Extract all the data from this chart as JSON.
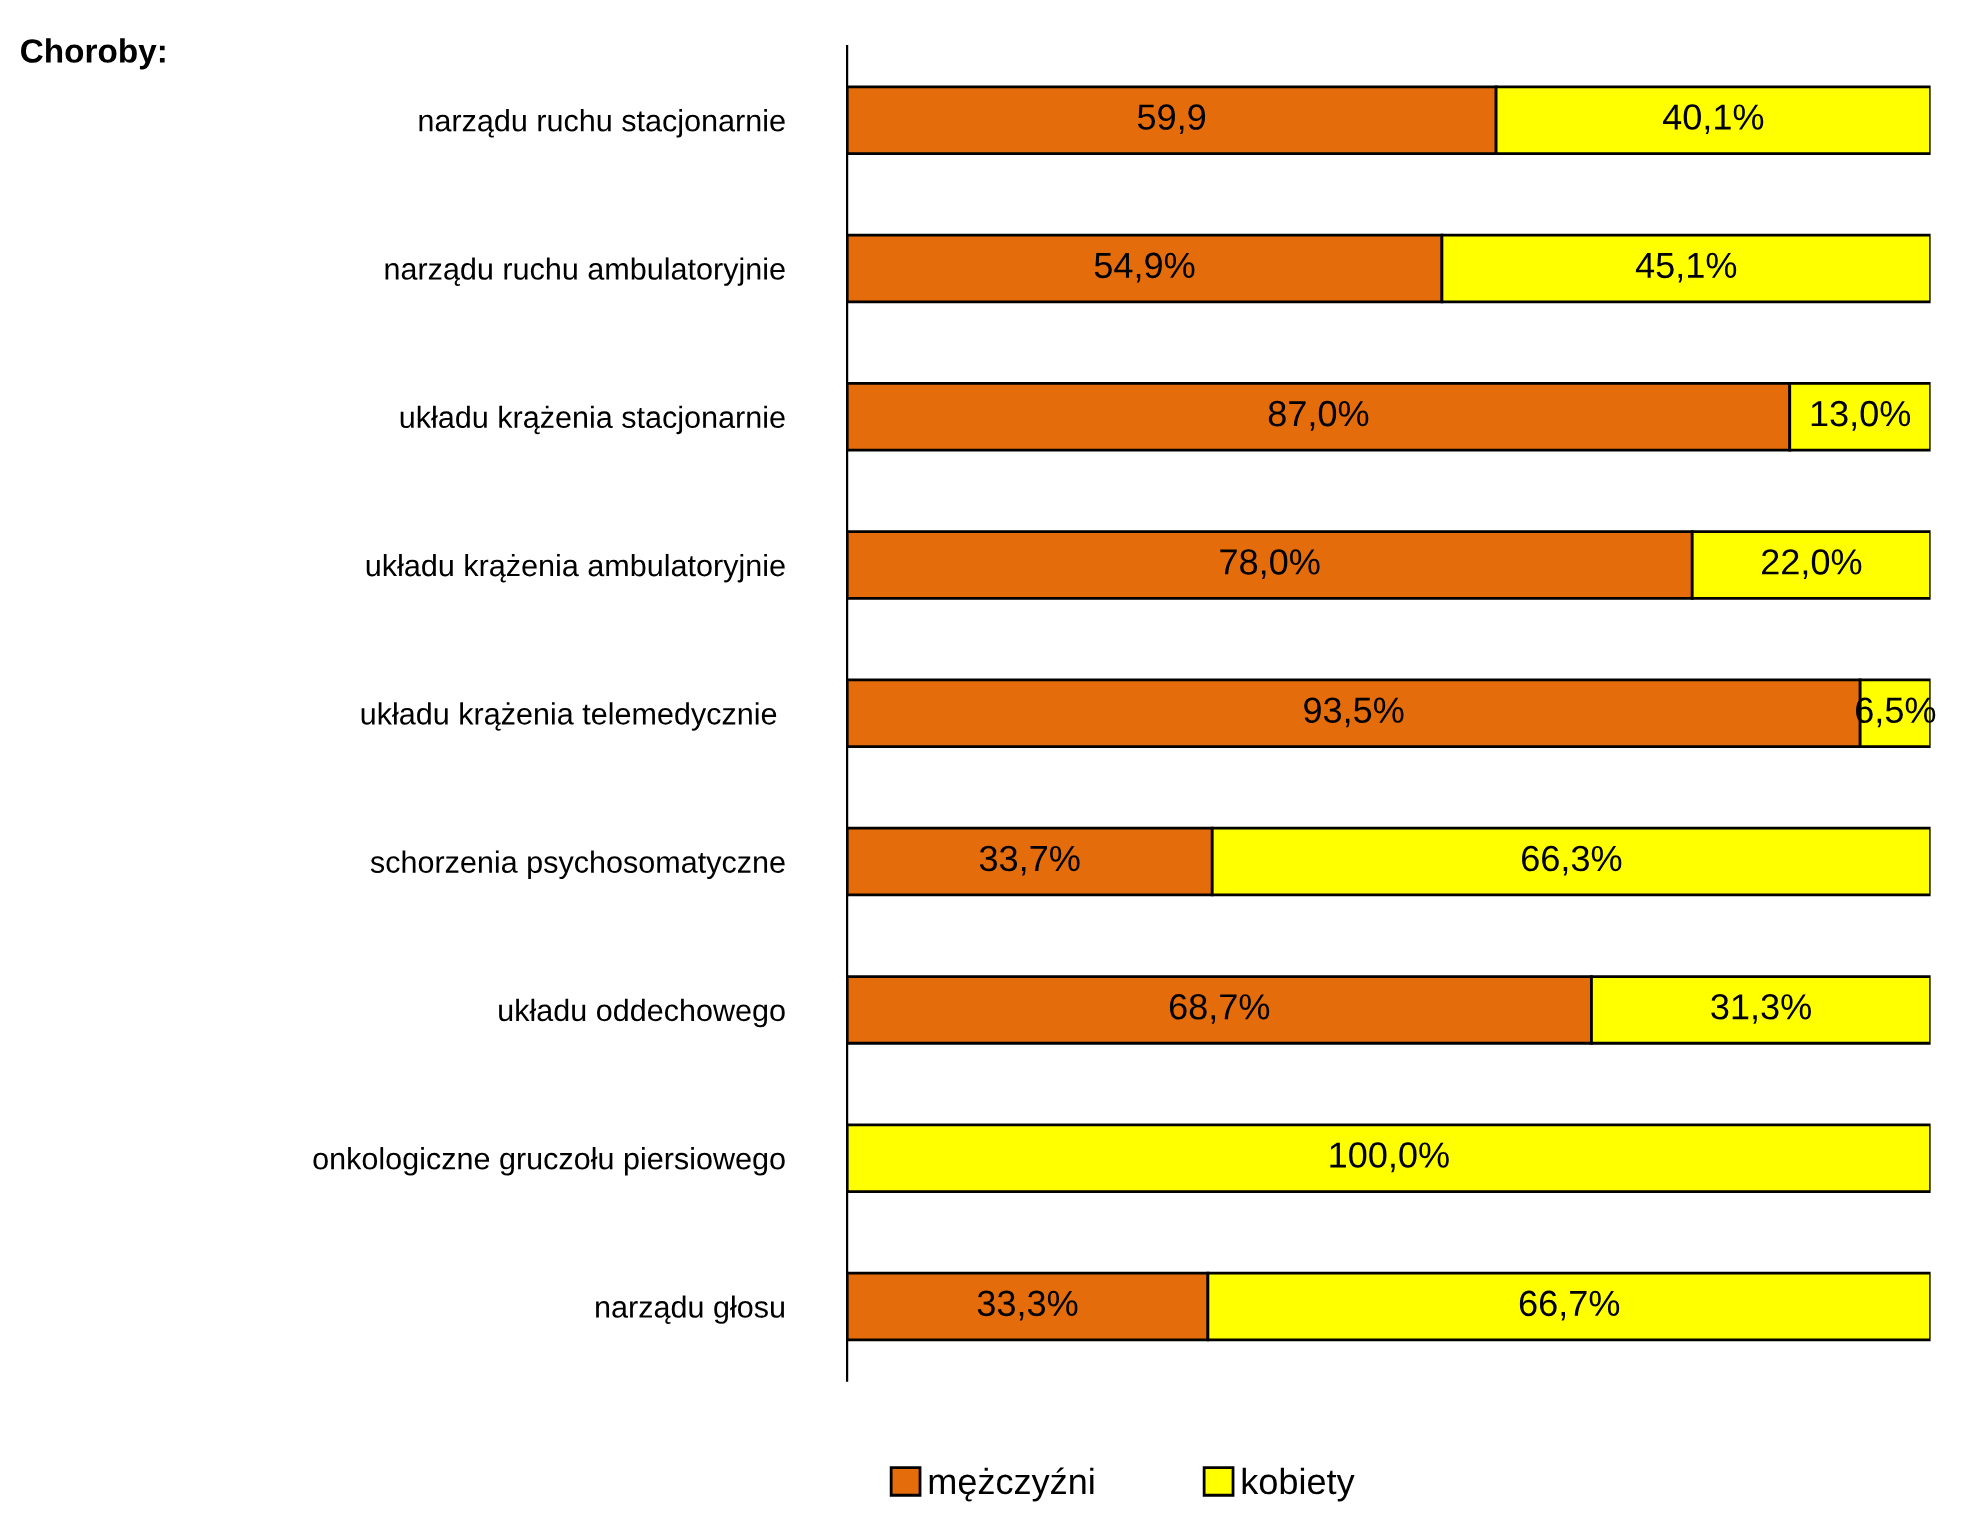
{
  "chart_data": {
    "type": "bar",
    "orientation": "horizontal",
    "stacked": true,
    "title": "Choroby:",
    "tick_labels": "y",
    "legend": "bottom",
    "grid": false,
    "categories": [
      "narządu ruchu stacjonarnie",
      "narządu ruchu ambulatoryjnie",
      "układu krążenia stacjonarnie",
      "układu krążenia ambulatoryjnie",
      "układu krążenia telemedycznie ",
      "schorzenia psychosomatyczne",
      "układu oddechowego",
      "onkologiczne gruczołu piersiowego",
      "narządu głosu"
    ],
    "series": [
      {
        "name": "mężczyźni",
        "color": "#e46c0a",
        "values": [
          59.9,
          54.9,
          87.0,
          78.0,
          93.5,
          33.7,
          68.7,
          0,
          33.3
        ],
        "value_labels": [
          "59,9",
          "54,9%",
          "87,0%",
          "78,0%",
          "93,5%",
          "33,7%",
          "68,7%",
          null,
          "33,3%"
        ]
      },
      {
        "name": "kobiety",
        "color": "#ffff00",
        "values": [
          40.1,
          45.1,
          13.0,
          22.0,
          6.5,
          66.3,
          31.3,
          100.0,
          66.7
        ],
        "value_labels": [
          "40,1%",
          "45,1%",
          "13,0%",
          "22,0%",
          "6,5%",
          "66,3%",
          "31,3%",
          "100,0%",
          "66,7%"
        ]
      }
    ]
  }
}
